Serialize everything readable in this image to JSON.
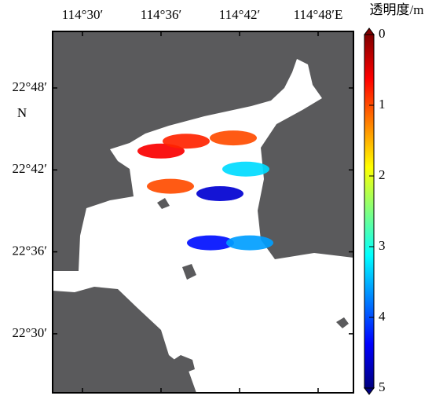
{
  "map": {
    "colorbar_title": "透明度/m",
    "lat_label": "N",
    "xlim": [
      114.462,
      114.845
    ],
    "ylim": [
      22.428,
      22.869
    ],
    "xticks": [
      {
        "value": 114.5,
        "label": "114°30′"
      },
      {
        "value": 114.6,
        "label": "114°36′"
      },
      {
        "value": 114.7,
        "label": "114°42′"
      },
      {
        "value": 114.8,
        "label": "114°48′E"
      }
    ],
    "yticks": [
      {
        "value": 22.8,
        "label": "22°48′"
      },
      {
        "value": 22.7,
        "label": "22°42′"
      },
      {
        "value": 22.6,
        "label": "22°36′"
      },
      {
        "value": 22.5,
        "label": "22°30′"
      }
    ],
    "colorbar": {
      "clim": [
        0,
        5
      ],
      "ticks": [
        0,
        1,
        2,
        3,
        4,
        5
      ]
    },
    "stations": [
      {
        "lon": 114.6,
        "lat": 22.723,
        "value": 0.6
      },
      {
        "lon": 114.632,
        "lat": 22.735,
        "value": 0.8
      },
      {
        "lon": 114.692,
        "lat": 22.739,
        "value": 1.0
      },
      {
        "lon": 114.612,
        "lat": 22.68,
        "value": 1.0
      },
      {
        "lon": 114.708,
        "lat": 22.701,
        "value": 3.3
      },
      {
        "lon": 114.675,
        "lat": 22.671,
        "value": 4.6
      },
      {
        "lon": 114.663,
        "lat": 22.611,
        "value": 4.3
      },
      {
        "lon": 114.713,
        "lat": 22.611,
        "value": 3.6
      }
    ]
  }
}
